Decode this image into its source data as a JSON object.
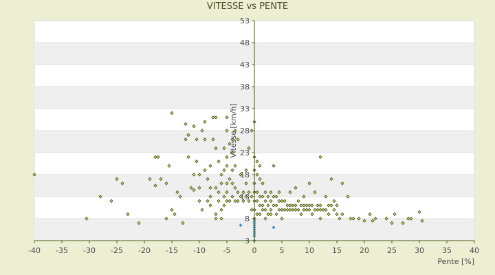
{
  "chart_data": {
    "type": "scatter",
    "title": "VITESSE vs PENTE",
    "xlabel": "Pente [%]",
    "ylabel": "Vitesse [km/h]",
    "xlim": [
      -40,
      40
    ],
    "ylim": [
      3,
      53
    ],
    "x_ticks": [
      "-40",
      "-35",
      "-30",
      "-25",
      "-20",
      "-15",
      "-10",
      "-5",
      "0",
      "5",
      "10",
      "15",
      "20",
      "25",
      "30",
      "35",
      "40"
    ],
    "y_ticks": [
      "3",
      "8",
      "13",
      "18",
      "23",
      "28",
      "33",
      "38",
      "43",
      "48",
      "53"
    ],
    "grid": "horizontal bands",
    "legend": "none",
    "colors": {
      "background": "#ecefd2",
      "plot": "#ffffff",
      "band": "#efefef",
      "marker_fill": "#d8e07a",
      "marker_stroke": "#3c4a14",
      "marker_alt": "#3a8fd0",
      "axis": "#4a5a1a"
    },
    "series": [
      {
        "points": [
          [
            -40,
            18
          ],
          [
            -30.5,
            8
          ],
          [
            -28,
            13
          ],
          [
            -26,
            12
          ],
          [
            -25,
            17
          ],
          [
            -24,
            16
          ],
          [
            -23,
            9
          ],
          [
            -21,
            7
          ],
          [
            -19,
            17
          ],
          [
            -18,
            15.5
          ],
          [
            -18,
            22
          ],
          [
            -17.5,
            22
          ],
          [
            -17,
            17
          ],
          [
            -16,
            16
          ],
          [
            -16,
            8
          ],
          [
            -15.5,
            20
          ],
          [
            -15,
            32
          ],
          [
            -15,
            10
          ],
          [
            -14.5,
            9
          ],
          [
            -14,
            14
          ],
          [
            -13.5,
            13
          ],
          [
            -13,
            7
          ],
          [
            -12.5,
            26
          ],
          [
            -12.5,
            29.5
          ],
          [
            -12,
            27
          ],
          [
            -12,
            22
          ],
          [
            -11.5,
            15
          ],
          [
            -11,
            18
          ],
          [
            -11,
            14.5
          ],
          [
            -11,
            29
          ],
          [
            -10.5,
            26
          ],
          [
            -10.5,
            21
          ],
          [
            -10,
            18
          ],
          [
            -10,
            15
          ],
          [
            -10,
            12
          ],
          [
            -9.5,
            10
          ],
          [
            -9.5,
            28
          ],
          [
            -9,
            30
          ],
          [
            -9,
            26
          ],
          [
            -9,
            19
          ],
          [
            -8.5,
            12
          ],
          [
            -8.5,
            17
          ],
          [
            -8,
            13
          ],
          [
            -8,
            11
          ],
          [
            -8,
            15
          ],
          [
            -8,
            20
          ],
          [
            -7.5,
            26
          ],
          [
            -7.5,
            31
          ],
          [
            -7,
            31
          ],
          [
            -7,
            24
          ],
          [
            -7,
            15
          ],
          [
            -7,
            8
          ],
          [
            -7,
            9
          ],
          [
            -6.5,
            21
          ],
          [
            -6.5,
            14
          ],
          [
            -6.5,
            12
          ],
          [
            -6,
            18
          ],
          [
            -6,
            16
          ],
          [
            -6,
            10
          ],
          [
            -6,
            8
          ],
          [
            -5.5,
            24
          ],
          [
            -5.5,
            19
          ],
          [
            -5.5,
            13
          ],
          [
            -5.5,
            11
          ],
          [
            -5,
            31
          ],
          [
            -5,
            28
          ],
          [
            -5,
            22
          ],
          [
            -5,
            20
          ],
          [
            -5,
            16
          ],
          [
            -5,
            14
          ],
          [
            -5,
            12
          ],
          [
            -4.5,
            25
          ],
          [
            -4.5,
            17
          ],
          [
            -4.5,
            12
          ],
          [
            -4,
            26
          ],
          [
            -4,
            23
          ],
          [
            -4,
            19
          ],
          [
            -4,
            16
          ],
          [
            -4,
            13
          ],
          [
            -3.5,
            28
          ],
          [
            -3.5,
            20
          ],
          [
            -3.5,
            15
          ],
          [
            -3.5,
            12
          ],
          [
            -3,
            26
          ],
          [
            -3,
            14
          ],
          [
            -3,
            12
          ],
          [
            -2.5,
            13
          ],
          [
            -2.5,
            18
          ],
          [
            -2,
            14
          ],
          [
            -2,
            12
          ],
          [
            -1.5,
            19
          ],
          [
            -1.5,
            16
          ],
          [
            -1.5,
            13
          ],
          [
            -1,
            24
          ],
          [
            -1,
            14
          ],
          [
            -1,
            12
          ],
          [
            -0.5,
            28
          ],
          [
            -0.5,
            13
          ],
          [
            -0.5,
            10
          ],
          [
            0,
            30
          ],
          [
            0,
            22
          ],
          [
            0,
            19
          ],
          [
            0,
            16
          ],
          [
            0,
            14
          ],
          [
            0,
            12
          ],
          [
            0,
            10
          ],
          [
            0,
            8
          ],
          [
            0.5,
            21
          ],
          [
            0.5,
            18
          ],
          [
            0.5,
            14
          ],
          [
            0.5,
            12
          ],
          [
            0.5,
            9
          ],
          [
            1,
            20
          ],
          [
            1,
            17
          ],
          [
            1,
            13
          ],
          [
            1,
            11
          ],
          [
            1,
            9
          ],
          [
            1.5,
            16
          ],
          [
            1.5,
            13
          ],
          [
            1.5,
            11
          ],
          [
            1.5,
            10
          ],
          [
            2,
            14
          ],
          [
            2,
            12
          ],
          [
            2,
            10
          ],
          [
            2,
            8
          ],
          [
            2.5,
            13
          ],
          [
            2.5,
            11
          ],
          [
            2.5,
            9
          ],
          [
            3,
            14
          ],
          [
            3,
            12
          ],
          [
            3,
            10
          ],
          [
            3,
            9
          ],
          [
            3.5,
            20
          ],
          [
            3.5,
            13
          ],
          [
            3.5,
            11
          ],
          [
            4,
            13
          ],
          [
            4,
            11
          ],
          [
            4,
            9
          ],
          [
            4.5,
            14
          ],
          [
            4.5,
            12
          ],
          [
            4.5,
            10
          ],
          [
            5,
            12
          ],
          [
            5,
            10
          ],
          [
            5,
            8
          ],
          [
            5.5,
            12
          ],
          [
            5.5,
            10
          ],
          [
            6,
            11
          ],
          [
            6,
            10
          ],
          [
            6.5,
            14
          ],
          [
            6.5,
            11
          ],
          [
            6.5,
            10
          ],
          [
            7,
            11
          ],
          [
            7,
            10
          ],
          [
            7.5,
            15
          ],
          [
            7.5,
            11
          ],
          [
            7.5,
            10
          ],
          [
            8,
            12
          ],
          [
            8,
            10
          ],
          [
            8.5,
            11
          ],
          [
            8.5,
            9
          ],
          [
            9,
            13
          ],
          [
            9,
            11
          ],
          [
            9,
            10
          ],
          [
            9.5,
            11
          ],
          [
            9.5,
            10
          ],
          [
            10,
            11
          ],
          [
            10,
            10
          ],
          [
            10.5,
            11
          ],
          [
            10.5,
            9
          ],
          [
            11,
            14
          ],
          [
            11,
            10
          ],
          [
            11.5,
            11
          ],
          [
            11.5,
            10
          ],
          [
            12,
            11
          ],
          [
            12,
            10
          ],
          [
            12,
            8
          ],
          [
            12.5,
            10
          ],
          [
            13,
            13
          ],
          [
            13,
            10
          ],
          [
            13.5,
            11
          ],
          [
            13.5,
            9
          ],
          [
            14,
            17
          ],
          [
            14,
            11
          ],
          [
            14.5,
            12
          ],
          [
            14.5,
            10
          ],
          [
            15,
            11
          ],
          [
            15,
            9
          ],
          [
            15.5,
            8
          ],
          [
            16,
            9
          ],
          [
            16,
            16
          ],
          [
            17,
            13
          ],
          [
            17.5,
            8
          ],
          [
            18,
            8
          ],
          [
            19,
            8
          ],
          [
            20,
            7.5
          ],
          [
            21,
            9
          ],
          [
            21.5,
            7.5
          ],
          [
            22,
            8
          ],
          [
            24,
            8
          ],
          [
            25,
            7
          ],
          [
            25.5,
            9
          ],
          [
            27,
            7
          ],
          [
            28,
            8
          ],
          [
            28.5,
            8
          ],
          [
            30,
            9.5
          ],
          [
            30.5,
            7.5
          ],
          [
            12,
            22
          ],
          [
            10,
            16
          ]
        ]
      },
      {
        "points": [
          [
            0,
            3
          ],
          [
            0,
            4
          ],
          [
            0,
            5
          ],
          [
            0,
            5.5
          ],
          [
            0,
            6
          ],
          [
            0,
            6.5
          ],
          [
            0,
            7
          ],
          [
            0,
            7.5
          ],
          [
            0,
            4.5
          ],
          [
            -2.5,
            6.5
          ],
          [
            3.5,
            6
          ]
        ]
      }
    ]
  }
}
